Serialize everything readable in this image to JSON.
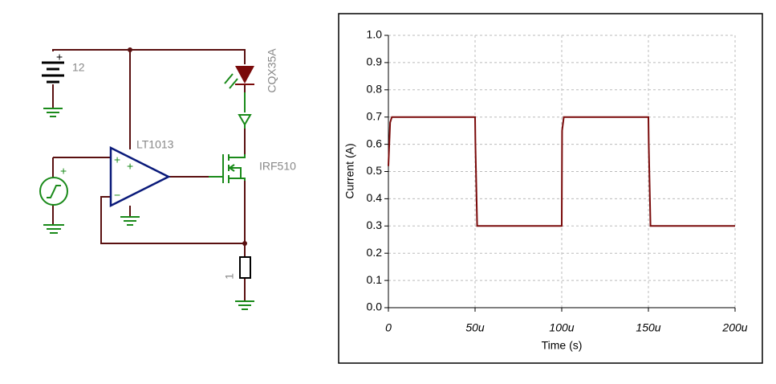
{
  "diagram": {
    "battery_label": "12",
    "opamp_label": "LT1013",
    "led_label": "CQX35A",
    "mosfet_label": "IRF510",
    "resistor_label": "1"
  },
  "chart_data": {
    "type": "line",
    "x_label": "Time (s)",
    "y_label": "Current (A)",
    "color": "#7a0a0a",
    "grid": true,
    "x": [
      0,
      1e-06,
      2e-06,
      5e-05,
      5.02e-05,
      5.12e-05,
      0.0001,
      0.0001002,
      0.0001012,
      0.00015,
      0.0001502,
      0.0001512,
      0.0002
    ],
    "values": [
      0.52,
      0.68,
      0.7,
      0.7,
      0.6,
      0.3,
      0.3,
      0.65,
      0.7,
      0.7,
      0.6,
      0.3,
      0.3
    ],
    "xlim": [
      0,
      0.0002
    ],
    "xticks": [
      0,
      {
        "value": 5e-05,
        "label": "50u"
      },
      {
        "value": 0.0001,
        "label": "100u"
      },
      {
        "value": 0.00015,
        "label": "150u"
      },
      {
        "value": 0.0002,
        "label": "200u"
      }
    ],
    "ylim": [
      0,
      1
    ],
    "yticks": [
      {
        "value": 0,
        "label": "0.0"
      },
      0.1,
      0.2,
      0.3,
      0.4,
      0.5,
      0.6,
      0.7,
      0.8,
      0.9,
      {
        "value": 1,
        "label": "1.0"
      }
    ]
  }
}
